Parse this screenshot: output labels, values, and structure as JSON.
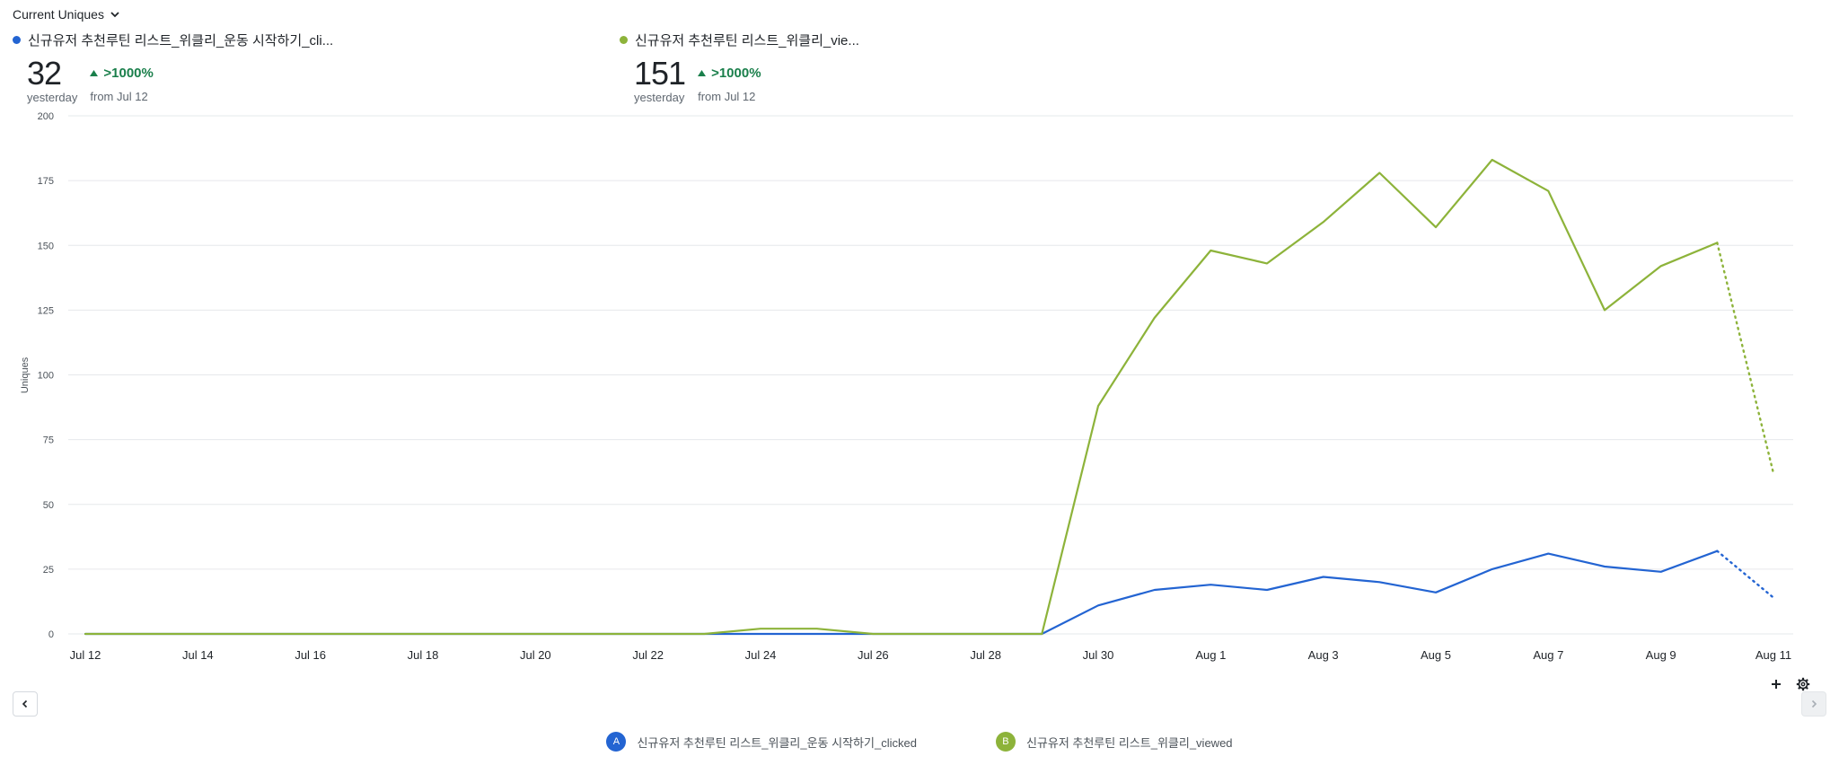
{
  "header": {
    "metric_label": "Current Uniques"
  },
  "stats": [
    {
      "title": "신규유저 추천루틴 리스트_위클리_운동 시작하기_cli...",
      "value": "32",
      "value_caption": "yesterday",
      "change": ">1000%",
      "change_caption": "from Jul 12"
    },
    {
      "title": "신규유저 추천루틴 리스트_위클리_vie...",
      "value": "151",
      "value_caption": "yesterday",
      "change": ">1000%",
      "change_caption": "from Jul 12"
    }
  ],
  "colors": {
    "series_a": "#2364d2",
    "series_b": "#8db33a",
    "grid": "#e6e8eb",
    "positive": "#1a7f4b"
  },
  "legend": [
    {
      "badge": "A",
      "label": "신규유저 추천루틴 리스트_위클리_운동 시작하기_clicked"
    },
    {
      "badge": "B",
      "label": "신규유저 추천루틴 리스트_위클리_viewed"
    }
  ],
  "icons": {
    "add": "plus-icon",
    "settings": "gear-icon",
    "prev": "chevron-left-icon",
    "next": "chevron-right-icon",
    "dropdown": "chevron-down-icon"
  },
  "chart_data": {
    "type": "line",
    "ylabel": "Uniques",
    "ylim": [
      0,
      200
    ],
    "yticks": [
      0,
      25,
      50,
      75,
      100,
      125,
      150,
      175,
      200
    ],
    "xtick_labels": [
      "Jul 12",
      "Jul 14",
      "Jul 16",
      "Jul 18",
      "Jul 20",
      "Jul 22",
      "Jul 24",
      "Jul 26",
      "Jul 28",
      "Jul 30",
      "Aug 1",
      "Aug 3",
      "Aug 5",
      "Aug 7",
      "Aug 9",
      "Aug 11"
    ],
    "x": [
      "Jul 12",
      "Jul 13",
      "Jul 14",
      "Jul 15",
      "Jul 16",
      "Jul 17",
      "Jul 18",
      "Jul 19",
      "Jul 20",
      "Jul 21",
      "Jul 22",
      "Jul 23",
      "Jul 24",
      "Jul 25",
      "Jul 26",
      "Jul 27",
      "Jul 28",
      "Jul 29",
      "Jul 30",
      "Jul 31",
      "Aug 1",
      "Aug 2",
      "Aug 3",
      "Aug 4",
      "Aug 5",
      "Aug 6",
      "Aug 7",
      "Aug 8",
      "Aug 9",
      "Aug 10",
      "Aug 11"
    ],
    "grid": true,
    "incomplete_last_point": true,
    "series": [
      {
        "name": "신규유저 추천루틴 리스트_위클리_운동 시작하기_clicked",
        "values": [
          0,
          0,
          0,
          0,
          0,
          0,
          0,
          0,
          0,
          0,
          0,
          0,
          0,
          0,
          0,
          0,
          0,
          0,
          11,
          17,
          19,
          17,
          22,
          20,
          16,
          25,
          31,
          26,
          24,
          32,
          14
        ]
      },
      {
        "name": "신규유저 추천루틴 리스트_위클리_viewed",
        "values": [
          0,
          0,
          0,
          0,
          0,
          0,
          0,
          0,
          0,
          0,
          0,
          0,
          2,
          2,
          0,
          0,
          0,
          0,
          88,
          122,
          148,
          143,
          159,
          178,
          157,
          183,
          171,
          125,
          142,
          151,
          62
        ]
      }
    ]
  }
}
